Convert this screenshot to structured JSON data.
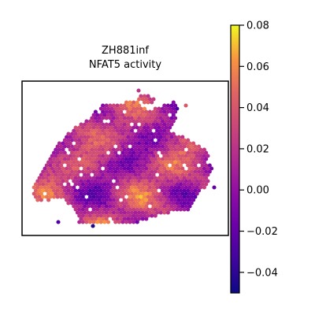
{
  "chart_data": {
    "type": "heatmap",
    "subtype": "spatial-hexbin",
    "title_lines": [
      "ZH881inf",
      "NFAT5 activity"
    ],
    "colormap": "plasma",
    "colorbar": {
      "range": [
        -0.05,
        0.08
      ],
      "ticks": [
        -0.04,
        -0.02,
        0.0,
        0.02,
        0.04,
        0.06,
        0.08
      ],
      "tick_labels": [
        "−0.04",
        "−0.02",
        "0.00",
        "0.02",
        "0.04",
        "0.06",
        "0.08"
      ]
    },
    "xticks": [],
    "yticks": [],
    "grid": false
  }
}
